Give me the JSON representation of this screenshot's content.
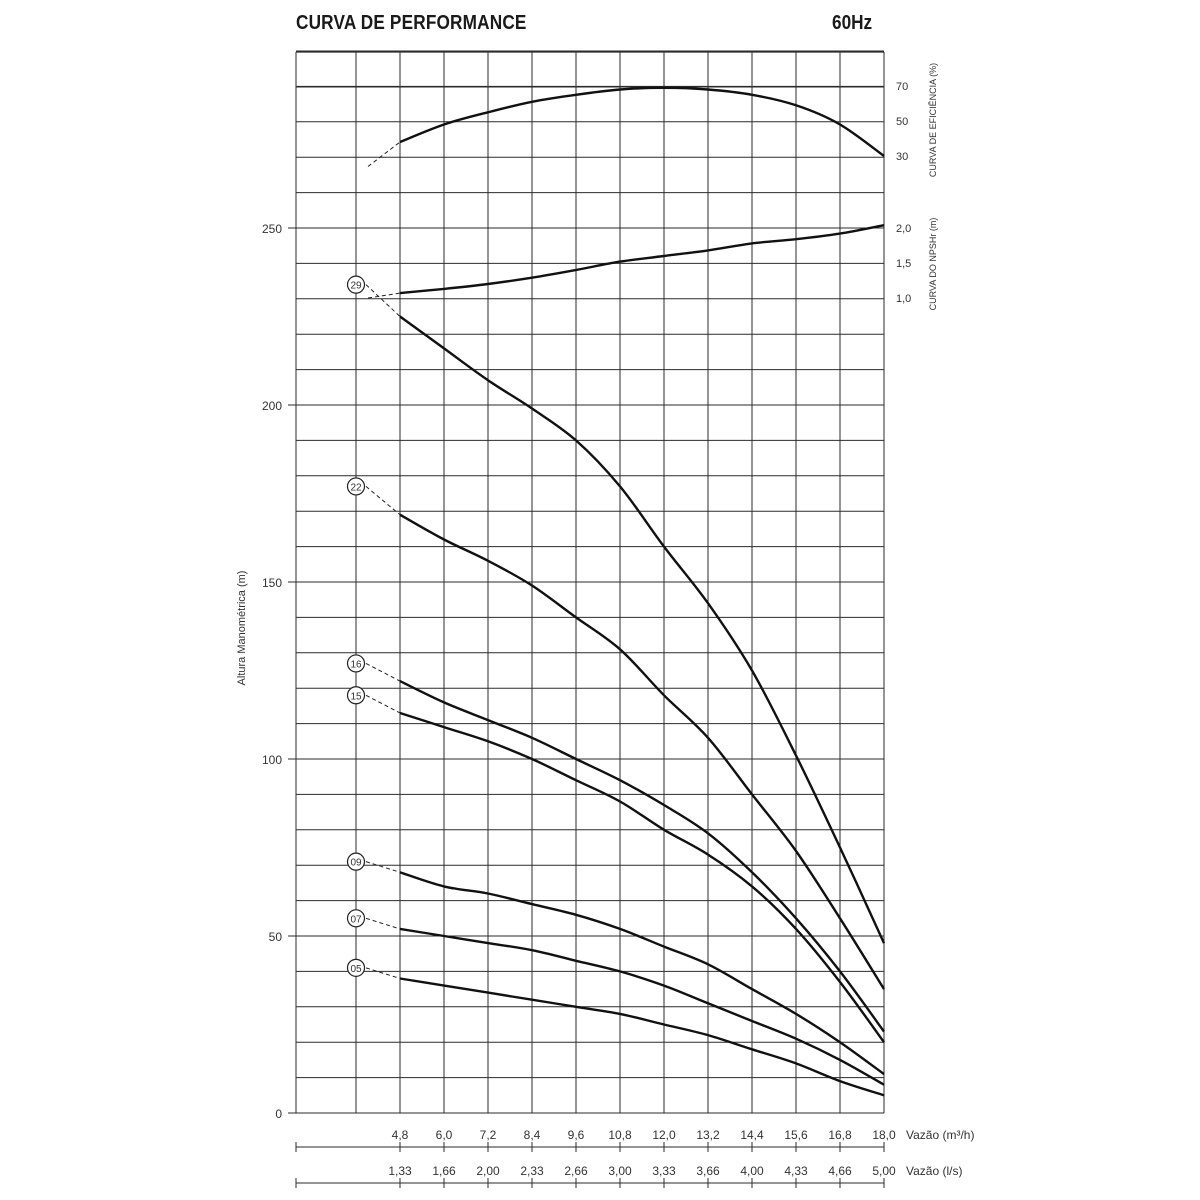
{
  "header": {
    "title": "CURVA DE PERFORMANCE",
    "frequency": "60Hz"
  },
  "chart_data": {
    "type": "line",
    "title": "CURVA DE PERFORMANCE",
    "ylabel": "Altura Manométrica (m)",
    "ylim": [
      0,
      310
    ],
    "y_ticks": [
      0,
      50,
      100,
      150,
      200,
      250
    ],
    "xlabel_m3h": "Vazão (m³/h)",
    "xlabel_ls": "Vazão (l/s)",
    "xlim": [
      0,
      18.0
    ],
    "x_ticks_m3h": [
      "4,8",
      "6,0",
      "7,2",
      "8,4",
      "9,6",
      "10,8",
      "12,0",
      "13,2",
      "14,4",
      "15,6",
      "16,8",
      "18,0"
    ],
    "x_ticks_ls": [
      "1,33",
      "1,66",
      "2,00",
      "2,33",
      "2,66",
      "3,00",
      "3,33",
      "3,66",
      "4,00",
      "4,33",
      "4,66",
      "5,00"
    ],
    "efficiency_axis": {
      "label": "CURVA DE EFICIÊNCIA (%)",
      "ticks": [
        "70",
        "50",
        "30"
      ]
    },
    "npsh_axis": {
      "label": "CURVA DO NPSHr (m)",
      "ticks": [
        "2,0",
        "1,5",
        "1,0"
      ]
    },
    "grid": true,
    "stage_series": [
      {
        "name": "29",
        "x": [
          3.6,
          4.8,
          6.0,
          7.2,
          8.4,
          9.6,
          10.8,
          12.0,
          13.2,
          14.4,
          15.6,
          16.8,
          18.0
        ],
        "y": [
          234,
          225,
          216,
          207,
          199,
          190,
          177,
          160,
          144,
          125,
          101,
          75,
          48
        ]
      },
      {
        "name": "22",
        "x": [
          3.6,
          4.8,
          6.0,
          7.2,
          8.4,
          9.6,
          10.8,
          12.0,
          13.2,
          14.4,
          15.6,
          16.8,
          18.0
        ],
        "y": [
          177,
          169,
          162,
          156,
          149,
          140,
          131,
          118,
          106,
          90,
          74,
          55,
          35
        ]
      },
      {
        "name": "16",
        "x": [
          3.6,
          4.8,
          6.0,
          7.2,
          8.4,
          9.6,
          10.8,
          12.0,
          13.2,
          14.4,
          15.6,
          16.8,
          18.0
        ],
        "y": [
          127,
          122,
          116,
          111,
          106,
          100,
          94,
          87,
          79,
          68,
          55,
          40,
          23
        ]
      },
      {
        "name": "15",
        "x": [
          3.6,
          4.8,
          6.0,
          7.2,
          8.4,
          9.6,
          10.8,
          12.0,
          13.2,
          14.4,
          15.6,
          16.8,
          18.0
        ],
        "y": [
          118,
          113,
          109,
          105,
          100,
          94,
          88,
          80,
          73,
          64,
          52,
          37,
          20
        ]
      },
      {
        "name": "09",
        "x": [
          3.6,
          4.8,
          6.0,
          7.2,
          8.4,
          9.6,
          10.8,
          12.0,
          13.2,
          14.4,
          15.6,
          16.8,
          18.0
        ],
        "y": [
          71,
          68,
          64,
          62,
          59,
          56,
          52,
          47,
          42,
          35,
          28,
          20,
          11
        ]
      },
      {
        "name": "07",
        "x": [
          3.6,
          4.8,
          6.0,
          7.2,
          8.4,
          9.6,
          10.8,
          12.0,
          13.2,
          14.4,
          15.6,
          16.8,
          18.0
        ],
        "y": [
          55,
          52,
          50,
          48,
          46,
          43,
          40,
          36,
          31,
          26,
          21,
          15,
          8
        ]
      },
      {
        "name": "05",
        "x": [
          3.6,
          4.8,
          6.0,
          7.2,
          8.4,
          9.6,
          10.8,
          12.0,
          13.2,
          14.4,
          15.6,
          16.8,
          18.0
        ],
        "y": [
          41,
          38,
          36,
          34,
          32,
          30,
          28,
          25,
          22,
          18,
          14,
          9,
          5
        ]
      }
    ],
    "efficiency_curve": {
      "x": [
        3.6,
        4.8,
        6.0,
        7.2,
        8.4,
        9.6,
        10.8,
        12.0,
        13.2,
        14.4,
        15.6,
        16.8,
        18.0
      ],
      "y": [
        24,
        38,
        48,
        55,
        61,
        65,
        68,
        69,
        68,
        65,
        59,
        48,
        30
      ]
    },
    "npsh_curve": {
      "x": [
        3.6,
        4.8,
        6.0,
        7.2,
        8.4,
        9.6,
        10.8,
        12.0,
        13.2,
        14.4,
        15.6,
        16.8,
        18.0
      ],
      "y": [
        1.0,
        1.07,
        1.13,
        1.2,
        1.29,
        1.4,
        1.52,
        1.6,
        1.68,
        1.78,
        1.84,
        1.92,
        2.04
      ]
    }
  }
}
